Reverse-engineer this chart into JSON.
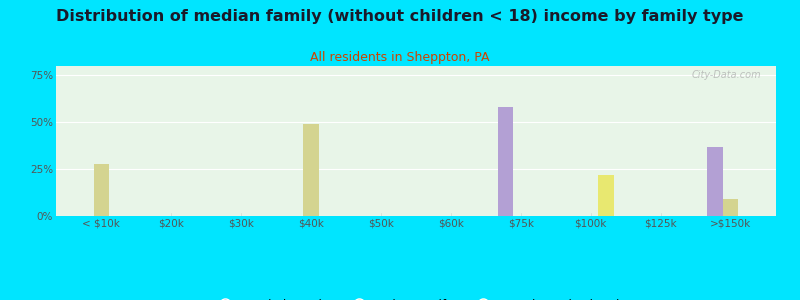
{
  "title": "Distribution of median family (without children < 18) income by family type",
  "subtitle": "All residents in Sheppton, PA",
  "categories": [
    "< $10k",
    "$20k",
    "$30k",
    "$40k",
    "$50k",
    "$60k",
    "$75k",
    "$100k",
    "$125k",
    ">$150k"
  ],
  "married_couple": [
    0,
    0,
    0,
    0,
    0,
    0,
    58,
    0,
    0,
    37
  ],
  "male_no_wife": [
    28,
    0,
    0,
    49,
    0,
    0,
    0,
    0,
    0,
    9
  ],
  "female_no_husband": [
    0,
    0,
    0,
    0,
    0,
    0,
    0,
    22,
    0,
    0
  ],
  "married_color": "#b3a0d4",
  "male_color": "#d4d490",
  "female_color": "#e8e870",
  "bar_width": 0.22,
  "ylim": [
    0,
    80
  ],
  "yticks": [
    0,
    25,
    50,
    75
  ],
  "ytick_labels": [
    "0%",
    "25%",
    "50%",
    "75%"
  ],
  "bg_color": "#00e5ff",
  "plot_bg": "#e8f5e8",
  "watermark": "City-Data.com",
  "title_fontsize": 11.5,
  "subtitle_fontsize": 9,
  "legend_fontsize": 8.5,
  "tick_fontsize": 7.5
}
